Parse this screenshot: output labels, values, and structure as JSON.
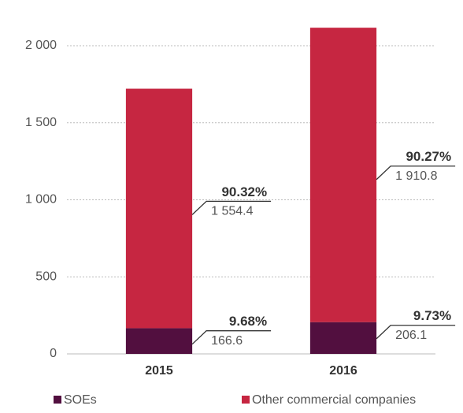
{
  "chart_data": {
    "type": "stacked_bar",
    "categories": [
      "2015",
      "2016"
    ],
    "series": [
      {
        "name": "SOEs",
        "color": "#520f3f",
        "values": [
          166.6,
          206.1
        ],
        "value_labels": [
          "166.6",
          "206.1"
        ],
        "share_labels": [
          "9.68%",
          "9.73%"
        ]
      },
      {
        "name": "Other commercial companies",
        "color": "#c62641",
        "values": [
          1554.4,
          1910.8
        ],
        "value_labels": [
          "1 554.4",
          "1 910.8"
        ],
        "share_labels": [
          "90.32%",
          "90.27%"
        ]
      }
    ],
    "ylim": [
      0,
      2150
    ],
    "yticks": [
      0,
      500,
      {
        "value": 1000,
        "label": "1 000"
      },
      {
        "value": 1500,
        "label": "1 500"
      },
      {
        "value": 2000,
        "label": "2 000"
      }
    ],
    "grid": true
  }
}
